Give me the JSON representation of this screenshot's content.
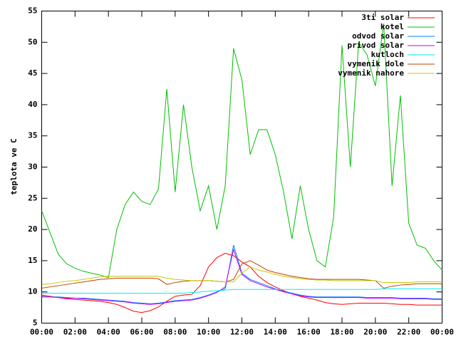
{
  "chart_data": {
    "type": "line",
    "ylabel": "teplota ve C",
    "legend": "top right",
    "x": [
      0,
      0.5,
      1,
      1.5,
      2,
      2.5,
      3,
      3.5,
      4,
      4.5,
      5,
      5.5,
      6,
      6.5,
      7,
      7.5,
      8,
      8.5,
      9,
      9.5,
      10,
      10.5,
      11,
      11.5,
      12,
      12.5,
      13,
      13.5,
      14,
      14.5,
      15,
      15.5,
      16,
      16.5,
      17,
      17.5,
      18,
      18.5,
      19,
      19.5,
      20,
      20.5,
      21,
      21.5,
      22,
      22.5,
      23,
      23.5,
      24
    ],
    "xlim": [
      0,
      24
    ],
    "xticks": [
      {
        "value": 0,
        "label": "00:00"
      },
      {
        "value": 2,
        "label": "02:00"
      },
      {
        "value": 4,
        "label": "04:00"
      },
      {
        "value": 6,
        "label": "06:00"
      },
      {
        "value": 8,
        "label": "08:00"
      },
      {
        "value": 10,
        "label": "10:00"
      },
      {
        "value": 12,
        "label": "12:00"
      },
      {
        "value": 14,
        "label": "14:00"
      },
      {
        "value": 16,
        "label": "16:00"
      },
      {
        "value": 18,
        "label": "18:00"
      },
      {
        "value": 20,
        "label": "20:00"
      },
      {
        "value": 22,
        "label": "22:00"
      },
      {
        "value": 24,
        "label": "00:00"
      }
    ],
    "ylim": [
      5,
      55
    ],
    "yticks": [
      5,
      10,
      15,
      20,
      25,
      30,
      35,
      40,
      45,
      50,
      55
    ],
    "series": [
      {
        "name": "3ti solar",
        "color": "#ff0000",
        "values": [
          9.5,
          9.3,
          9.1,
          8.9,
          8.8,
          8.7,
          8.6,
          8.5,
          8.3,
          8.0,
          7.5,
          6.9,
          6.7,
          7.0,
          7.6,
          8.5,
          9.3,
          9.5,
          9.6,
          11,
          14,
          15.5,
          16.2,
          15.8,
          14.8,
          14,
          12.5,
          11.5,
          10.8,
          10.2,
          9.7,
          9.3,
          9.0,
          8.7,
          8.3,
          8.1,
          8.0,
          8.1,
          8.2,
          8.2,
          8.2,
          8.2,
          8.1,
          8.0,
          8.0,
          7.9,
          7.9,
          7.9,
          7.9
        ]
      },
      {
        "name": "kotel",
        "color": "#00c000",
        "values": [
          23,
          19.5,
          16,
          14.5,
          13.8,
          13.3,
          13,
          12.7,
          12.3,
          20,
          24,
          26,
          24.5,
          24,
          26.5,
          42.5,
          26,
          40,
          30,
          23,
          27,
          20,
          27,
          49,
          44,
          32,
          36,
          36,
          32,
          26,
          18.5,
          27,
          20,
          15,
          14,
          22,
          49.5,
          30,
          50,
          48,
          43,
          53,
          27,
          41.5,
          21,
          17.5,
          17,
          15,
          13.5
        ]
      },
      {
        "name": "odvod solar",
        "color": "#0080ff",
        "values": [
          9.3,
          9.2,
          9.2,
          9.1,
          9.0,
          9.0,
          8.9,
          8.8,
          8.7,
          8.6,
          8.5,
          8.3,
          8.2,
          8.1,
          8.2,
          8.4,
          8.6,
          8.7,
          8.8,
          9.1,
          9.5,
          10.0,
          10.5,
          17.5,
          13.0,
          12.0,
          11.5,
          11.0,
          10.5,
          10.1,
          9.8,
          9.5,
          9.3,
          9.2,
          9.2,
          9.2,
          9.2,
          9.2,
          9.2,
          9.1,
          9.1,
          9.1,
          9.1,
          9.0,
          9.0,
          9.0,
          9.0,
          8.9,
          8.9
        ]
      },
      {
        "name": "privod solar",
        "color": "#c000ff",
        "values": [
          9.2,
          9.2,
          9.1,
          9.0,
          9.0,
          8.9,
          8.8,
          8.7,
          8.6,
          8.5,
          8.4,
          8.2,
          8.1,
          8.0,
          8.1,
          8.3,
          8.5,
          8.6,
          8.7,
          9.0,
          9.4,
          9.9,
          10.8,
          16.8,
          12.8,
          11.8,
          11.3,
          10.8,
          10.4,
          10.0,
          9.7,
          9.4,
          9.2,
          9.1,
          9.1,
          9.1,
          9.1,
          9.1,
          9.1,
          9.0,
          9.0,
          9.0,
          9.0,
          8.9,
          8.9,
          8.9,
          8.9,
          8.8,
          8.8
        ]
      },
      {
        "name": "kutloch",
        "color": "#00eeee",
        "values": [
          9.8,
          9.8,
          9.8,
          9.8,
          9.8,
          9.8,
          9.8,
          9.8,
          9.8,
          9.8,
          9.8,
          9.8,
          9.8,
          9.8,
          9.8,
          9.8,
          9.8,
          9.8,
          9.9,
          10.0,
          10.1,
          10.2,
          10.3,
          10.4,
          10.4,
          10.4,
          10.4,
          10.4,
          10.4,
          10.4,
          10.4,
          10.4,
          10.4,
          10.4,
          10.4,
          10.4,
          10.4,
          10.4,
          10.4,
          10.4,
          10.4,
          10.5,
          10.5,
          10.5,
          10.5,
          10.5,
          10.5,
          10.5,
          10.5
        ]
      },
      {
        "name": "vymenik dole",
        "color": "#c04000",
        "values": [
          10.6,
          10.8,
          11.0,
          11.2,
          11.4,
          11.6,
          11.8,
          12.0,
          12.1,
          12.2,
          12.2,
          12.2,
          12.2,
          12.2,
          12.1,
          11.2,
          11.5,
          11.7,
          11.8,
          11.8,
          11.8,
          11.7,
          11.6,
          12.0,
          14.5,
          15.0,
          14.3,
          13.5,
          13.1,
          12.8,
          12.5,
          12.3,
          12.1,
          12.0,
          12.0,
          12.0,
          12.0,
          12.0,
          12.0,
          11.9,
          11.8,
          10.6,
          10.9,
          11.1,
          11.2,
          11.3,
          11.3,
          11.3,
          11.3
        ]
      },
      {
        "name": "vymenik nahore",
        "color": "#c8c800",
        "values": [
          11.2,
          11.3,
          11.5,
          11.7,
          11.8,
          12.0,
          12.2,
          12.4,
          12.5,
          12.5,
          12.5,
          12.5,
          12.5,
          12.5,
          12.5,
          12.2,
          12.0,
          11.9,
          11.8,
          11.8,
          11.8,
          11.7,
          11.6,
          11.6,
          13.0,
          14.0,
          13.5,
          13.2,
          12.8,
          12.5,
          12.3,
          12.1,
          12.0,
          11.9,
          11.9,
          11.8,
          11.8,
          11.8,
          11.8,
          11.8,
          11.8,
          11.5,
          11.5,
          11.5,
          11.5,
          11.6,
          11.6,
          11.6,
          11.6
        ]
      }
    ]
  }
}
